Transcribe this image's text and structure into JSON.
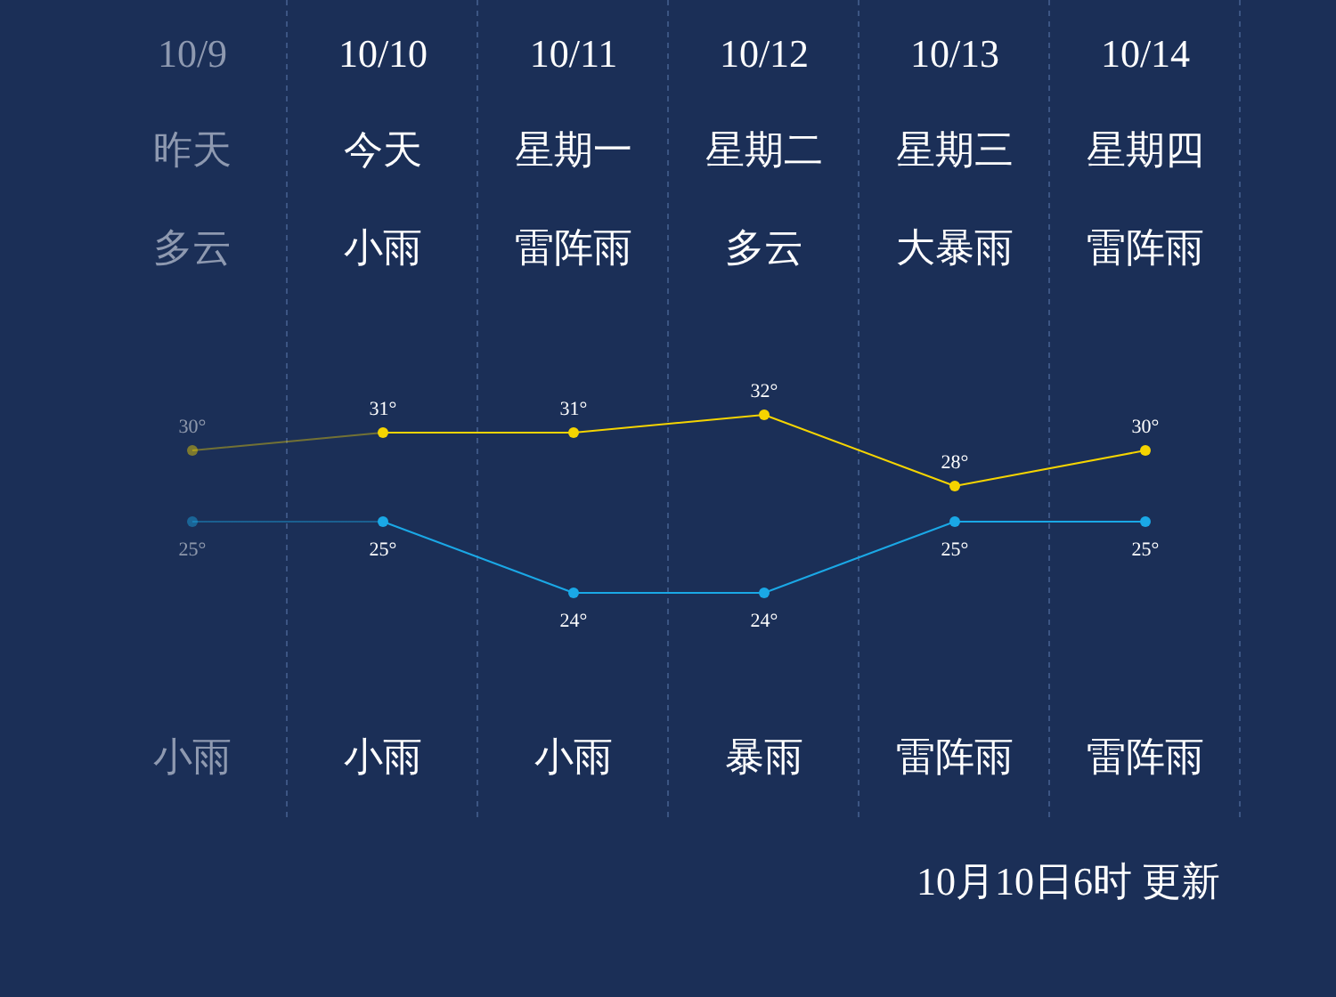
{
  "chart_data": [
    {
      "type": "line",
      "categories": [
        "10/9",
        "10/10",
        "10/11",
        "10/12",
        "10/13",
        "10/14"
      ],
      "series": [
        {
          "color": "#f5d400",
          "values": [
            30,
            31,
            31,
            32,
            28,
            30
          ],
          "value_labels": [
            "30°",
            "31°",
            "31°",
            "32°",
            "28°",
            "30°"
          ]
        }
      ],
      "annotations": [
        "昨天",
        "今天",
        "星期一",
        "星期二",
        "星期三",
        "星期四",
        "多云",
        "小雨",
        "雷阵雨",
        "多云",
        "大暴雨",
        "雷阵雨"
      ],
      "marker": "circle"
    },
    {
      "type": "line",
      "categories": [
        null,
        null,
        null,
        null,
        null,
        null
      ],
      "series": [
        {
          "color": "#1aa8e6",
          "values": [
            25,
            25,
            24,
            24,
            25,
            25
          ],
          "value_labels": [
            "25°",
            "25°",
            "24°",
            "24°",
            "25°",
            "25°"
          ]
        }
      ],
      "annotations": [
        "小雨",
        "小雨",
        "小雨",
        "暴雨",
        "雷阵雨",
        "雷阵雨",
        "10月10日6时 更新"
      ],
      "marker": "circle"
    }
  ]
}
